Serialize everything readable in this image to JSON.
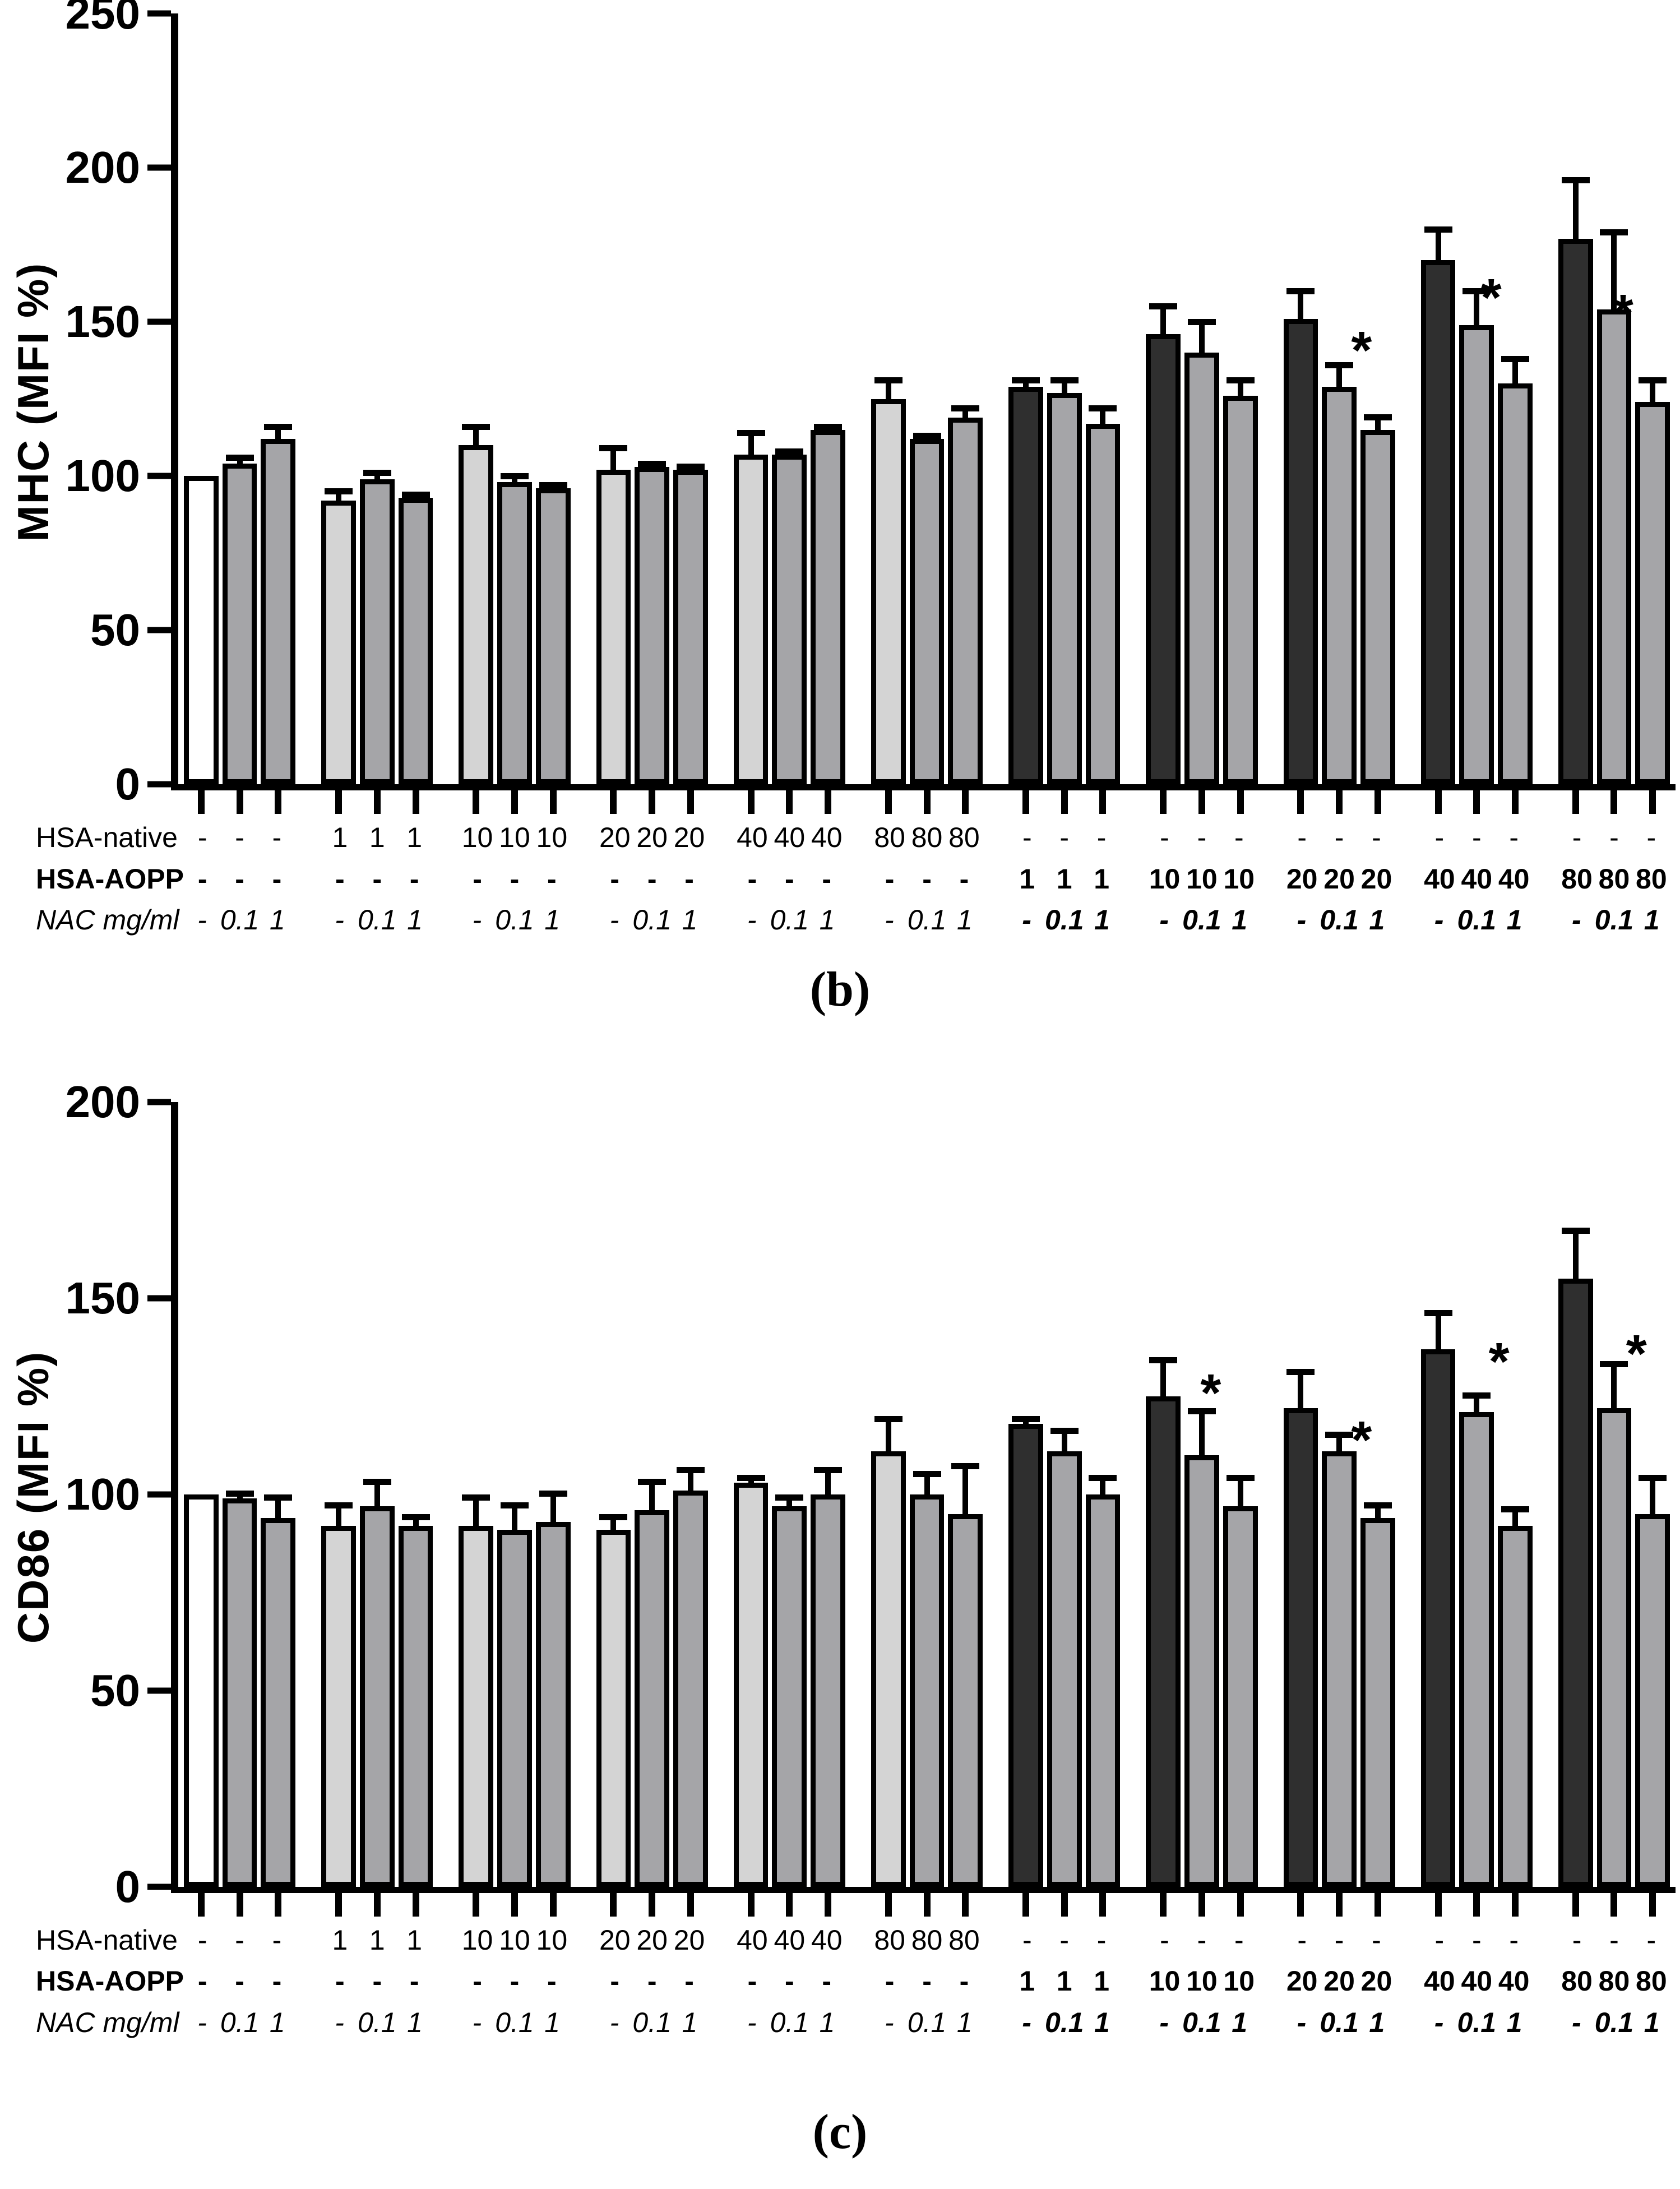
{
  "significance_marker": "*",
  "palette": {
    "control": "#ffffff",
    "native": "#d4d4d4",
    "aopp": "#2f2f2f",
    "nac": "#a5a5a8",
    "outline": "#000000"
  },
  "chart_data": [
    {
      "type": "bar",
      "title": "(b)",
      "xlabel": "",
      "ylabel": "MHC (MFI %)",
      "ylim": [
        0,
        250
      ],
      "yticks": [
        0,
        50,
        100,
        150,
        200,
        250
      ],
      "grid": false,
      "legend": "none",
      "row_headers": [
        "HSA-native",
        "HSA-AOPP",
        "NAC mg/ml"
      ],
      "groups": [
        {
          "hsa_native": "-",
          "hsa_aopp": "-",
          "nac": [
            "-",
            "0.1",
            "1"
          ],
          "nac_bold": false,
          "star": null,
          "bars": [
            {
              "value": 100,
              "err": 0,
              "fill": "control"
            },
            {
              "value": 104,
              "err": 3,
              "fill": "nac"
            },
            {
              "value": 112,
              "err": 5,
              "fill": "nac"
            }
          ]
        },
        {
          "hsa_native": "1",
          "hsa_aopp": "-",
          "nac": [
            "-",
            "0.1",
            "1"
          ],
          "nac_bold": false,
          "star": null,
          "bars": [
            {
              "value": 92,
              "err": 4,
              "fill": "native"
            },
            {
              "value": 99,
              "err": 3,
              "fill": "nac"
            },
            {
              "value": 93,
              "err": 2,
              "fill": "nac"
            }
          ]
        },
        {
          "hsa_native": "10",
          "hsa_aopp": "-",
          "nac": [
            "-",
            "0.1",
            "1"
          ],
          "nac_bold": false,
          "star": null,
          "bars": [
            {
              "value": 110,
              "err": 7,
              "fill": "native"
            },
            {
              "value": 98,
              "err": 3,
              "fill": "nac"
            },
            {
              "value": 96,
              "err": 2,
              "fill": "nac"
            }
          ]
        },
        {
          "hsa_native": "20",
          "hsa_aopp": "-",
          "nac": [
            "-",
            "0.1",
            "1"
          ],
          "nac_bold": false,
          "star": null,
          "bars": [
            {
              "value": 102,
              "err": 8,
              "fill": "native"
            },
            {
              "value": 103,
              "err": 2,
              "fill": "nac"
            },
            {
              "value": 102,
              "err": 2,
              "fill": "nac"
            }
          ]
        },
        {
          "hsa_native": "40",
          "hsa_aopp": "-",
          "nac": [
            "-",
            "0.1",
            "1"
          ],
          "nac_bold": false,
          "star": null,
          "bars": [
            {
              "value": 107,
              "err": 8,
              "fill": "native"
            },
            {
              "value": 107,
              "err": 2,
              "fill": "nac"
            },
            {
              "value": 115,
              "err": 2,
              "fill": "nac"
            }
          ]
        },
        {
          "hsa_native": "80",
          "hsa_aopp": "-",
          "nac": [
            "-",
            "0.1",
            "1"
          ],
          "nac_bold": false,
          "star": null,
          "bars": [
            {
              "value": 125,
              "err": 7,
              "fill": "native"
            },
            {
              "value": 112,
              "err": 2,
              "fill": "nac"
            },
            {
              "value": 119,
              "err": 4,
              "fill": "nac"
            }
          ]
        },
        {
          "hsa_native": "-",
          "hsa_aopp": "1",
          "nac": [
            "-",
            "0.1",
            "1"
          ],
          "nac_bold": true,
          "star": null,
          "bars": [
            {
              "value": 129,
              "err": 3,
              "fill": "aopp"
            },
            {
              "value": 127,
              "err": 5,
              "fill": "nac"
            },
            {
              "value": 117,
              "err": 6,
              "fill": "nac"
            }
          ]
        },
        {
          "hsa_native": "-",
          "hsa_aopp": "10",
          "nac": [
            "-",
            "0.1",
            "1"
          ],
          "nac_bold": true,
          "star": null,
          "bars": [
            {
              "value": 146,
              "err": 10,
              "fill": "aopp"
            },
            {
              "value": 140,
              "err": 11,
              "fill": "nac"
            },
            {
              "value": 126,
              "err": 6,
              "fill": "nac"
            }
          ]
        },
        {
          "hsa_native": "-",
          "hsa_aopp": "20",
          "nac": [
            "-",
            "0.1",
            "1"
          ],
          "nac_bold": true,
          "star": {
            "x": 0.7,
            "v": 136
          },
          "bars": [
            {
              "value": 151,
              "err": 10,
              "fill": "aopp"
            },
            {
              "value": 129,
              "err": 8,
              "fill": "nac"
            },
            {
              "value": 115,
              "err": 5,
              "fill": "nac"
            }
          ]
        },
        {
          "hsa_native": "-",
          "hsa_aopp": "40",
          "nac": [
            "-",
            "0.1",
            "1"
          ],
          "nac_bold": true,
          "star": {
            "x": 0.63,
            "v": 153
          },
          "bars": [
            {
              "value": 170,
              "err": 11,
              "fill": "aopp"
            },
            {
              "value": 149,
              "err": 12,
              "fill": "nac"
            },
            {
              "value": 130,
              "err": 9,
              "fill": "nac"
            }
          ]
        },
        {
          "hsa_native": "-",
          "hsa_aopp": "80",
          "nac": [
            "-",
            "0.1",
            "1"
          ],
          "nac_bold": true,
          "star": {
            "x": 0.58,
            "v": 148
          },
          "bars": [
            {
              "value": 177,
              "err": 20,
              "fill": "aopp"
            },
            {
              "value": 154,
              "err": 26,
              "fill": "nac"
            },
            {
              "value": 124,
              "err": 8,
              "fill": "nac"
            }
          ]
        }
      ]
    },
    {
      "type": "bar",
      "title": "(c)",
      "xlabel": "",
      "ylabel": "CD86 (MFI %)",
      "ylim": [
        0,
        200
      ],
      "yticks": [
        0,
        50,
        100,
        150,
        200
      ],
      "grid": false,
      "legend": "none",
      "row_headers": [
        "HSA-native",
        "HSA-AOPP",
        "NAC mg/ml"
      ],
      "groups": [
        {
          "hsa_native": "-",
          "hsa_aopp": "-",
          "nac": [
            "-",
            "0.1",
            "1"
          ],
          "nac_bold": false,
          "star": null,
          "bars": [
            {
              "value": 100,
              "err": 0,
              "fill": "control"
            },
            {
              "value": 99,
              "err": 2,
              "fill": "nac"
            },
            {
              "value": 94,
              "err": 6,
              "fill": "nac"
            }
          ]
        },
        {
          "hsa_native": "1",
          "hsa_aopp": "-",
          "nac": [
            "-",
            "0.1",
            "1"
          ],
          "nac_bold": false,
          "star": null,
          "bars": [
            {
              "value": 92,
              "err": 6,
              "fill": "native"
            },
            {
              "value": 97,
              "err": 7,
              "fill": "nac"
            },
            {
              "value": 92,
              "err": 3,
              "fill": "nac"
            }
          ]
        },
        {
          "hsa_native": "10",
          "hsa_aopp": "-",
          "nac": [
            "-",
            "0.1",
            "1"
          ],
          "nac_bold": false,
          "star": null,
          "bars": [
            {
              "value": 92,
              "err": 8,
              "fill": "native"
            },
            {
              "value": 91,
              "err": 7,
              "fill": "nac"
            },
            {
              "value": 93,
              "err": 8,
              "fill": "nac"
            }
          ]
        },
        {
          "hsa_native": "20",
          "hsa_aopp": "-",
          "nac": [
            "-",
            "0.1",
            "1"
          ],
          "nac_bold": false,
          "star": null,
          "bars": [
            {
              "value": 91,
              "err": 4,
              "fill": "native"
            },
            {
              "value": 96,
              "err": 8,
              "fill": "nac"
            },
            {
              "value": 101,
              "err": 6,
              "fill": "nac"
            }
          ]
        },
        {
          "hsa_native": "40",
          "hsa_aopp": "-",
          "nac": [
            "-",
            "0.1",
            "1"
          ],
          "nac_bold": false,
          "star": null,
          "bars": [
            {
              "value": 103,
              "err": 2,
              "fill": "native"
            },
            {
              "value": 97,
              "err": 3,
              "fill": "nac"
            },
            {
              "value": 100,
              "err": 7,
              "fill": "nac"
            }
          ]
        },
        {
          "hsa_native": "80",
          "hsa_aopp": "-",
          "nac": [
            "-",
            "0.1",
            "1"
          ],
          "nac_bold": false,
          "star": null,
          "bars": [
            {
              "value": 111,
              "err": 9,
              "fill": "native"
            },
            {
              "value": 100,
              "err": 6,
              "fill": "nac"
            },
            {
              "value": 95,
              "err": 13,
              "fill": "nac"
            }
          ]
        },
        {
          "hsa_native": "-",
          "hsa_aopp": "1",
          "nac": [
            "-",
            "0.1",
            "1"
          ],
          "nac_bold": true,
          "star": null,
          "bars": [
            {
              "value": 118,
              "err": 2,
              "fill": "aopp"
            },
            {
              "value": 111,
              "err": 6,
              "fill": "nac"
            },
            {
              "value": 100,
              "err": 5,
              "fill": "nac"
            }
          ]
        },
        {
          "hsa_native": "-",
          "hsa_aopp": "10",
          "nac": [
            "-",
            "0.1",
            "1"
          ],
          "nac_bold": true,
          "star": {
            "x": 0.58,
            "v": 122
          },
          "bars": [
            {
              "value": 125,
              "err": 10,
              "fill": "aopp"
            },
            {
              "value": 110,
              "err": 12,
              "fill": "nac"
            },
            {
              "value": 97,
              "err": 8,
              "fill": "nac"
            }
          ]
        },
        {
          "hsa_native": "-",
          "hsa_aopp": "20",
          "nac": [
            "-",
            "0.1",
            "1"
          ],
          "nac_bold": true,
          "star": {
            "x": 0.7,
            "v": 110
          },
          "bars": [
            {
              "value": 122,
              "err": 10,
              "fill": "aopp"
            },
            {
              "value": 111,
              "err": 5,
              "fill": "nac"
            },
            {
              "value": 94,
              "err": 4,
              "fill": "nac"
            }
          ]
        },
        {
          "hsa_native": "-",
          "hsa_aopp": "40",
          "nac": [
            "-",
            "0.1",
            "1"
          ],
          "nac_bold": true,
          "star": {
            "x": 0.7,
            "v": 130
          },
          "bars": [
            {
              "value": 137,
              "err": 10,
              "fill": "aopp"
            },
            {
              "value": 121,
              "err": 5,
              "fill": "nac"
            },
            {
              "value": 92,
              "err": 5,
              "fill": "nac"
            }
          ]
        },
        {
          "hsa_native": "-",
          "hsa_aopp": "80",
          "nac": [
            "-",
            "0.1",
            "1"
          ],
          "nac_bold": true,
          "star": {
            "x": 0.7,
            "v": 132
          },
          "bars": [
            {
              "value": 155,
              "err": 13,
              "fill": "aopp"
            },
            {
              "value": 122,
              "err": 12,
              "fill": "nac"
            },
            {
              "value": 95,
              "err": 10,
              "fill": "nac"
            }
          ]
        }
      ]
    }
  ]
}
